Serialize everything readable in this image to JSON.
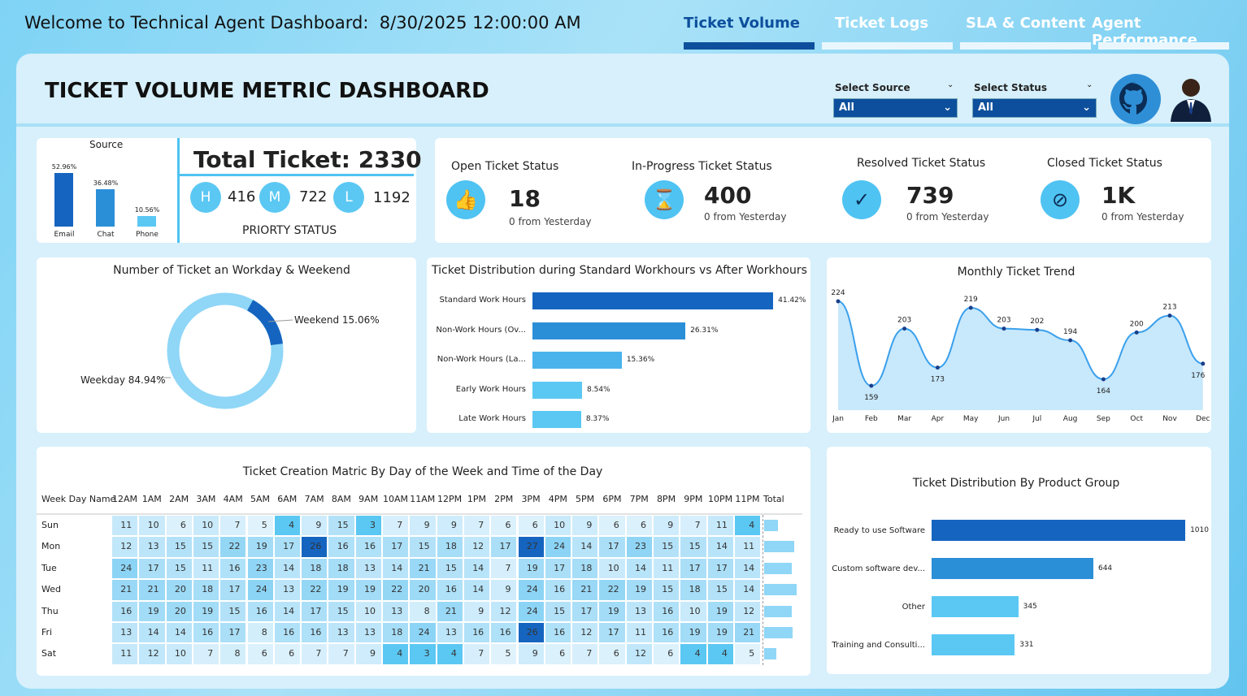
{
  "header": {
    "welcome": "Welcome to Technical Agent Dashboard:",
    "datetime": "8/30/2025 12:00:00 AM"
  },
  "tabs": [
    {
      "label": "Ticket Volume",
      "active": true
    },
    {
      "label": "Ticket Logs"
    },
    {
      "label": "SLA & Content"
    },
    {
      "label": "Agent Performance"
    }
  ],
  "title": "TICKET VOLUME METRIC DASHBOARD",
  "filters": {
    "source": {
      "label": "Select Source",
      "value": "All"
    },
    "status": {
      "label": "Select Status",
      "value": "All"
    }
  },
  "icons": {
    "github": "github-icon",
    "avatar": "agent-avatar"
  },
  "source_chart": {
    "title": "Source",
    "categories": [
      "Email",
      "Chat",
      "Phone"
    ],
    "values": [
      52.96,
      36.48,
      10.56
    ],
    "labels": [
      "52.96%",
      "36.48%",
      "10.56%"
    ],
    "colors": [
      "#1565c0",
      "#2b8fd8",
      "#5bc8f3"
    ]
  },
  "total": {
    "label": "Total Ticket: 2330",
    "priority_title": "PRIORTY STATUS",
    "priorities": [
      {
        "letter": "H",
        "value": "416"
      },
      {
        "letter": "M",
        "value": "722"
      },
      {
        "letter": "L",
        "value": "1192"
      }
    ]
  },
  "statuses": [
    {
      "title": "Open Ticket Status",
      "value": "18",
      "sub": "0 from Yesterday",
      "icon": "thumbs-up-icon"
    },
    {
      "title": "In-Progress Ticket Status",
      "value": "400",
      "sub": "0 from Yesterday",
      "icon": "hourglass-icon"
    },
    {
      "title": "Resolved Ticket Status",
      "value": "739",
      "sub": "0 from Yesterday",
      "icon": "check-circle-icon"
    },
    {
      "title": "Closed Ticket Status",
      "value": "1K",
      "sub": "0 from Yesterday",
      "icon": "eye-off-icon"
    }
  ],
  "chart_data": [
    {
      "type": "pie",
      "title": "Number of Ticket an Workday & Weekend",
      "categories": [
        "Weekend",
        "Weekday"
      ],
      "values": [
        15.06,
        84.94
      ],
      "labels": [
        "Weekend 15.06%",
        "Weekday 84.94%"
      ]
    },
    {
      "type": "bar",
      "title": "Ticket Distribution during Standard Workhours vs After Workhours",
      "categories": [
        "Standard Work Hours",
        "Non-Work Hours (Ov...",
        "Non-Work Hours (La...",
        "Early Work Hours",
        "Late Work Hours"
      ],
      "values": [
        41.42,
        26.31,
        15.36,
        8.54,
        8.37
      ],
      "labels": [
        "41.42%",
        "26.31%",
        "15.36%",
        "8.54%",
        "8.37%"
      ]
    },
    {
      "type": "line",
      "title": "Monthly Ticket Trend",
      "categories": [
        "Jan",
        "Feb",
        "Mar",
        "Apr",
        "May",
        "Jun",
        "Jul",
        "Aug",
        "Sep",
        "Oct",
        "Nov",
        "Dec"
      ],
      "values": [
        224,
        159,
        203,
        173,
        219,
        203,
        202,
        194,
        164,
        200,
        213,
        176
      ]
    },
    {
      "type": "heatmap",
      "title": "Ticket Creation Matric By Day of the Week and Time of the Day",
      "row_header": "Week Day Name",
      "total_header": "Total",
      "columns": [
        "12AM",
        "1AM",
        "2AM",
        "3AM",
        "4AM",
        "5AM",
        "6AM",
        "7AM",
        "8AM",
        "9AM",
        "10AM",
        "11AM",
        "12PM",
        "1PM",
        "2PM",
        "3PM",
        "4PM",
        "5PM",
        "6PM",
        "7PM",
        "8PM",
        "9PM",
        "10PM",
        "11PM"
      ],
      "rows": [
        "Sun",
        "Mon",
        "Tue",
        "Wed",
        "Thu",
        "Fri",
        "Sat"
      ],
      "values": [
        [
          11,
          10,
          6,
          10,
          7,
          5,
          4,
          9,
          15,
          3,
          7,
          9,
          9,
          7,
          6,
          6,
          10,
          9,
          6,
          6,
          9,
          7,
          11,
          4
        ],
        [
          12,
          13,
          15,
          15,
          22,
          19,
          17,
          26,
          16,
          16,
          17,
          15,
          18,
          12,
          17,
          27,
          24,
          14,
          17,
          23,
          15,
          15,
          14,
          11
        ],
        [
          24,
          17,
          15,
          11,
          16,
          23,
          14,
          18,
          18,
          13,
          14,
          21,
          15,
          14,
          7,
          19,
          17,
          18,
          10,
          14,
          11,
          17,
          17,
          14
        ],
        [
          21,
          21,
          20,
          18,
          17,
          24,
          13,
          22,
          19,
          19,
          22,
          20,
          16,
          14,
          9,
          24,
          16,
          21,
          22,
          19,
          15,
          18,
          15,
          14
        ],
        [
          16,
          19,
          20,
          19,
          15,
          16,
          14,
          17,
          15,
          10,
          13,
          8,
          21,
          9,
          12,
          24,
          15,
          17,
          19,
          13,
          16,
          10,
          19,
          12
        ],
        [
          13,
          14,
          14,
          16,
          17,
          8,
          16,
          16,
          13,
          13,
          18,
          24,
          13,
          16,
          16,
          26,
          16,
          12,
          17,
          11,
          16,
          19,
          19,
          21
        ],
        [
          11,
          12,
          10,
          7,
          8,
          6,
          6,
          7,
          7,
          9,
          4,
          3,
          4,
          7,
          5,
          9,
          6,
          7,
          6,
          12,
          6,
          4,
          4,
          5
        ]
      ]
    },
    {
      "type": "bar",
      "title": "Ticket Distribution By Product Group",
      "categories": [
        "Ready to use Software",
        "Custom software dev...",
        "Other",
        "Training and Consulti..."
      ],
      "values": [
        1010,
        644,
        345,
        331
      ],
      "labels": [
        "1010",
        "644",
        "345",
        "331"
      ]
    }
  ]
}
